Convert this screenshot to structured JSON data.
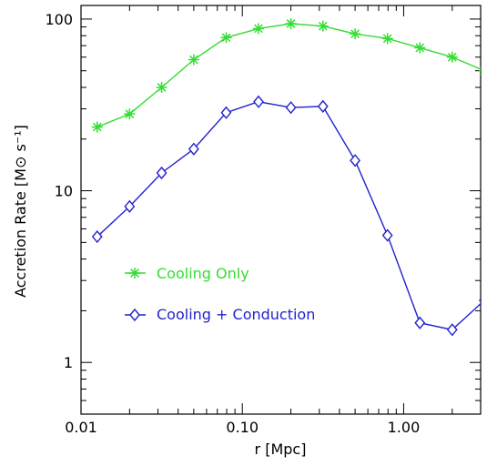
{
  "chart_data": {
    "type": "line",
    "xscale": "log",
    "yscale": "log",
    "xlim": [
      0.01,
      3.0
    ],
    "ylim": [
      0.5,
      120
    ],
    "xlabel": "r [Mpc]",
    "ylabel": "Accretion Rate [M⊙ s⁻¹]",
    "x_ticks": [
      {
        "value": 0.01,
        "label": "0.01"
      },
      {
        "value": 0.1,
        "label": "0.10"
      },
      {
        "value": 1.0,
        "label": "1.00"
      }
    ],
    "y_ticks": [
      {
        "value": 1,
        "label": "1"
      },
      {
        "value": 10,
        "label": "10"
      },
      {
        "value": 100,
        "label": "100"
      }
    ],
    "legend_position": "center-left",
    "series": [
      {
        "name": "Cooling Only",
        "color": "#33dd33",
        "marker": "asterisk",
        "x": [
          0.0126,
          0.02,
          0.0316,
          0.05,
          0.0794,
          0.126,
          0.2,
          0.316,
          0.5,
          0.794,
          1.26,
          2.0,
          3.16
        ],
        "y": [
          23.5,
          28.0,
          40.0,
          58.0,
          78.0,
          88.0,
          94.0,
          91.0,
          82.0,
          77.0,
          68.0,
          60.0,
          50.0
        ]
      },
      {
        "name": "Cooling + Conduction",
        "color": "#2222cc",
        "marker": "diamond",
        "x": [
          0.0126,
          0.02,
          0.0316,
          0.05,
          0.0794,
          0.126,
          0.2,
          0.316,
          0.5,
          0.794,
          1.26,
          2.0,
          3.16
        ],
        "y": [
          5.4,
          8.1,
          12.7,
          17.5,
          28.5,
          33.0,
          30.5,
          31.0,
          15.0,
          5.5,
          1.7,
          1.55,
          2.3
        ]
      }
    ]
  }
}
